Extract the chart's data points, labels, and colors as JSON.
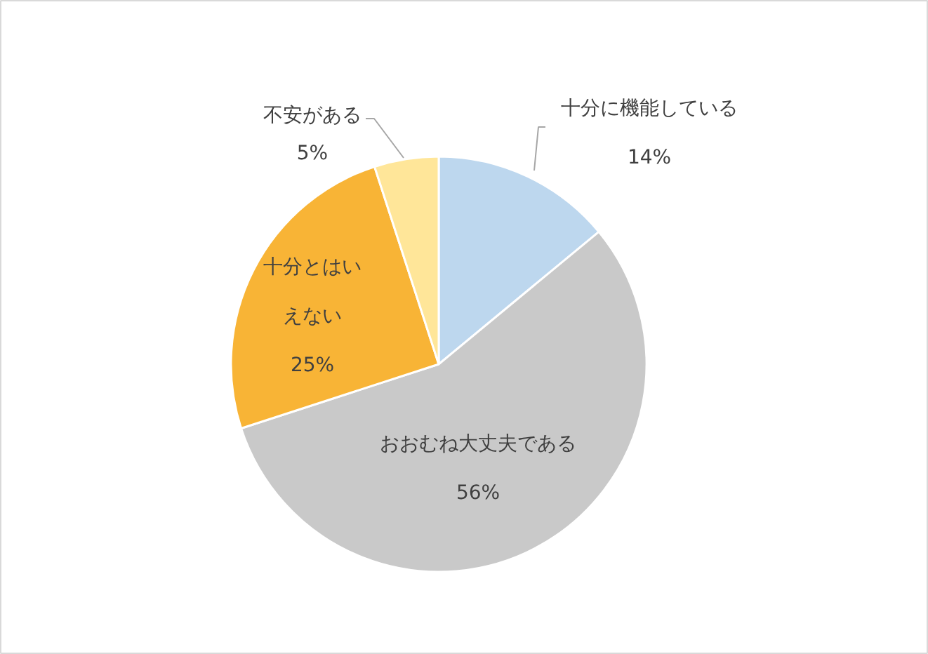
{
  "chart_data": {
    "type": "pie",
    "categories": [
      "十分に機能している",
      "おおむね大丈夫である",
      "十分とはいえない",
      "不安がある"
    ],
    "values": [
      14,
      56,
      25,
      5
    ],
    "colors": [
      "#bdd7ee",
      "#c9c9c9",
      "#f8b436",
      "#ffe699"
    ],
    "value_labels": [
      "14%",
      "56%",
      "25%",
      "5%"
    ]
  }
}
